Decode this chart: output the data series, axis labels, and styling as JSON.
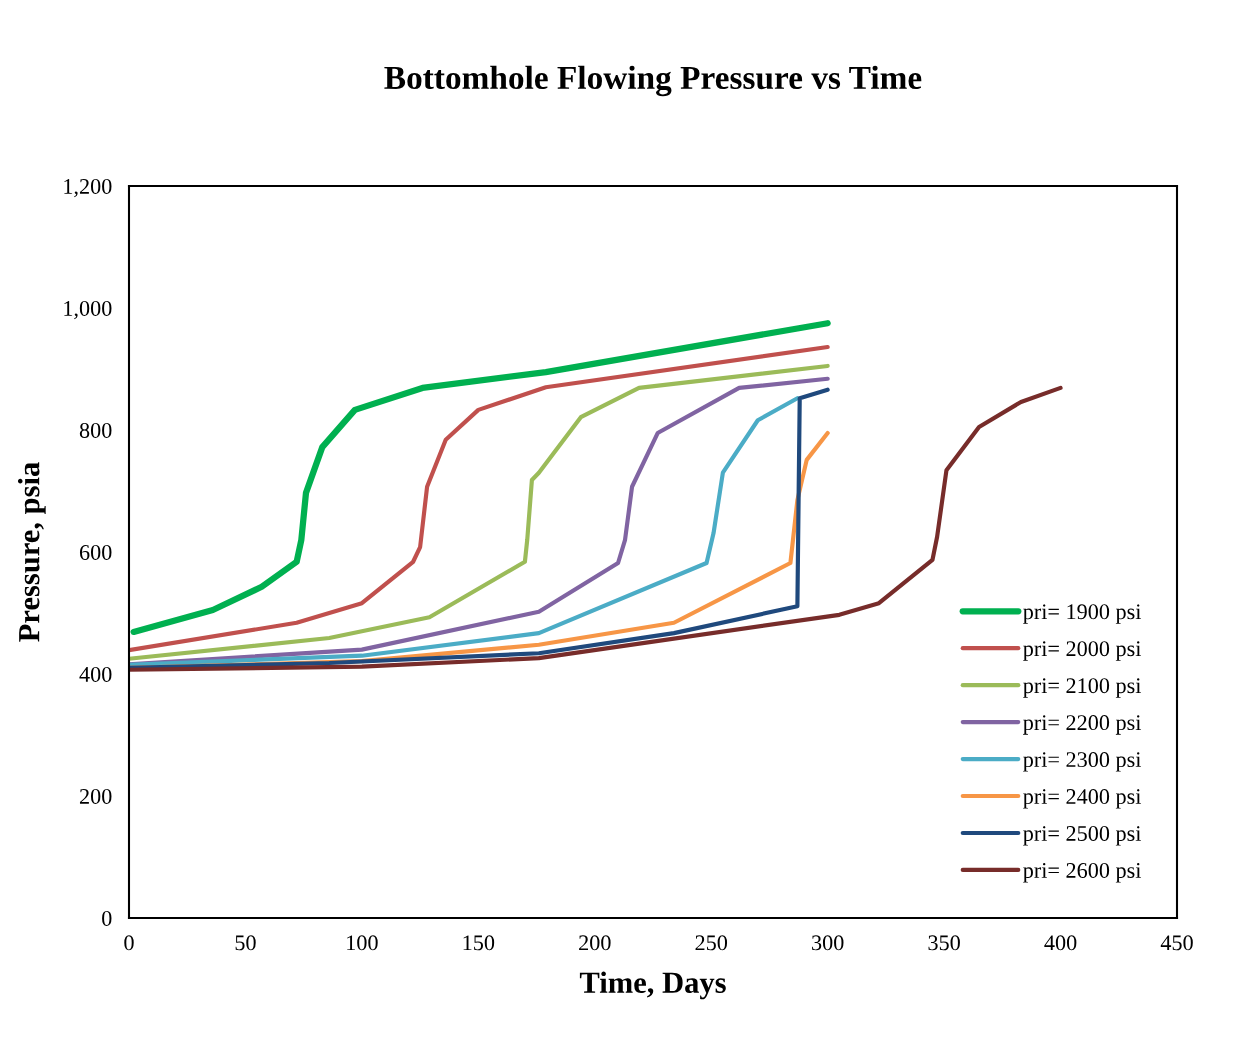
{
  "chart_data": {
    "type": "line",
    "title": "Bottomhole Flowing Pressure vs Time",
    "xlabel": "Time, Days",
    "ylabel": "Pressure, psia",
    "xlim": [
      0,
      450
    ],
    "xticks": [
      0,
      50,
      100,
      150,
      200,
      250,
      300,
      350,
      400,
      450
    ],
    "ylim": [
      0,
      1200
    ],
    "yticks": [
      0,
      200,
      400,
      600,
      800,
      {
        "value": 1000,
        "label": "1,000"
      },
      {
        "value": 1200,
        "label": "1,200"
      }
    ],
    "grid": false,
    "legend": "bottom right",
    "marker": "none",
    "line_style": "solid",
    "series": [
      {
        "name": "pri= 1900 psi",
        "color": "#00b050",
        "x": [
          2,
          36,
          57,
          72,
          74,
          76,
          83,
          97,
          126,
          179,
          300
        ],
        "values": [
          469,
          505,
          543,
          584,
          620,
          697,
          772,
          833,
          869,
          895,
          975
        ]
      },
      {
        "name": "pri= 2000 psi",
        "color": "#c0504d",
        "x": [
          0,
          72,
          100,
          122,
          125,
          128,
          136,
          150,
          179,
          300
        ],
        "values": [
          439,
          484,
          516,
          584,
          608,
          707,
          784,
          833,
          870,
          936
        ]
      },
      {
        "name": "pri= 2100 psi",
        "color": "#9bbb59",
        "x": [
          0,
          86,
          129,
          170,
          171,
          173,
          176,
          194,
          219,
          300
        ],
        "values": [
          425,
          459,
          493,
          584,
          620,
          718,
          730,
          821,
          869,
          905
        ]
      },
      {
        "name": "pri= 2200 psi",
        "color": "#8064a2",
        "x": [
          0,
          100,
          176,
          210,
          213,
          216,
          227,
          262,
          300
        ],
        "values": [
          416,
          440,
          502,
          582,
          620,
          707,
          795,
          869,
          884
        ]
      },
      {
        "name": "pri= 2300 psi",
        "color": "#4bacc6",
        "x": [
          0,
          100,
          176,
          248,
          251,
          255,
          270,
          287
        ],
        "values": [
          415,
          430,
          467,
          582,
          631,
          730,
          816,
          852
        ]
      },
      {
        "name": "pri= 2400 psi",
        "color": "#f79646",
        "x": [
          0,
          100,
          176,
          234,
          284,
          287,
          291,
          300
        ],
        "values": [
          410,
          421,
          448,
          484,
          582,
          685,
          751,
          795
        ]
      },
      {
        "name": "pri= 2500 psi",
        "color": "#1f497d",
        "x": [
          0,
          86,
          176,
          234,
          287,
          288,
          300
        ],
        "values": [
          410,
          418,
          434,
          467,
          511,
          852,
          866
        ]
      },
      {
        "name": "pri= 2600 psi",
        "color": "#772c2a",
        "x": [
          0,
          100,
          176,
          305,
          322,
          345,
          347,
          351,
          365,
          383,
          400
        ],
        "values": [
          407,
          412,
          426,
          497,
          516,
          587,
          625,
          734,
          805,
          846,
          869
        ]
      }
    ]
  }
}
